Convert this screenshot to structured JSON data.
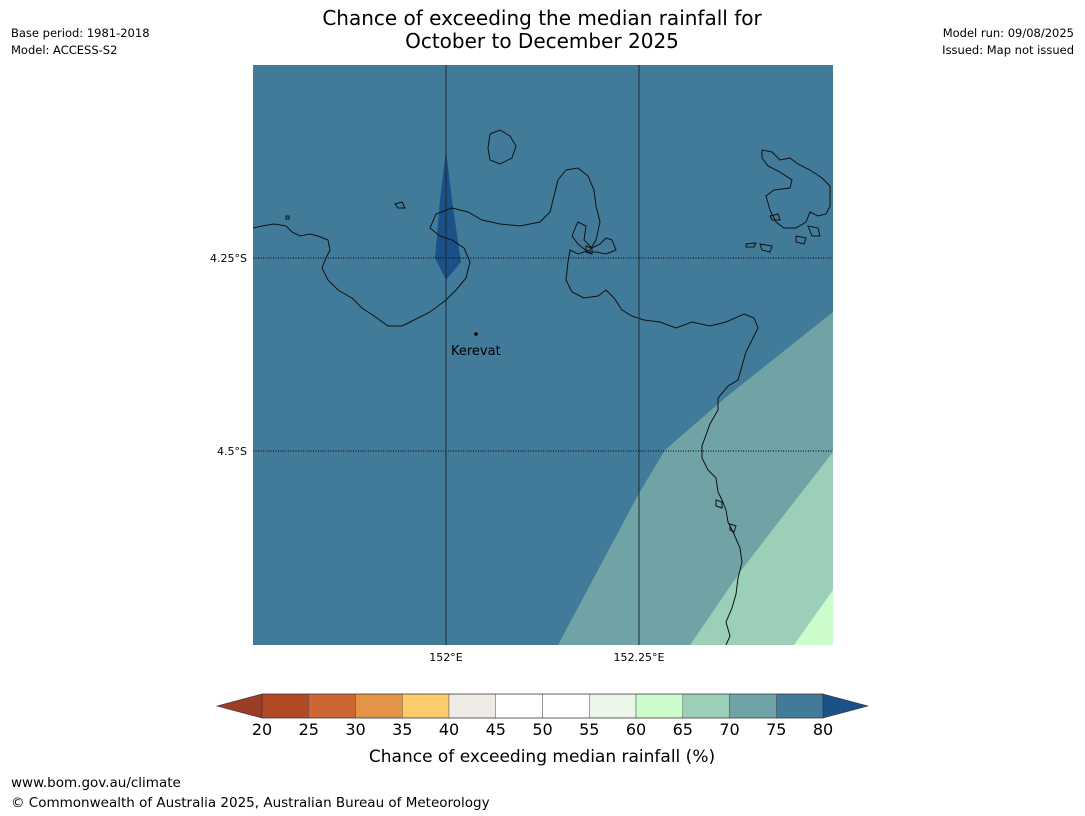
{
  "header": {
    "title_line1": "Chance of exceeding the median rainfall for",
    "title_line2": "October to December 2025",
    "base_period": "Base period: 1981-2018",
    "model": "Model: ACCESS-S2",
    "model_run": "Model run: 09/08/2025",
    "issued": "Issued: Map not issued"
  },
  "map": {
    "lat_labels": [
      "4.25°S",
      "4.5°S"
    ],
    "lon_labels": [
      "152°E",
      "152.25°E"
    ],
    "place": "Kerevat",
    "colors": {
      "ocean_fill": "#427b99",
      "band_70_75": "#6fa3a6",
      "band_65_70": "#9ccfb8",
      "band_60_65": "#ccfccc",
      "high_80": "#1b5187",
      "coastline": "#111111"
    }
  },
  "colorbar": {
    "title": "Chance of exceeding median rainfall (%)",
    "ticks": [
      "20",
      "25",
      "30",
      "35",
      "40",
      "45",
      "50",
      "55",
      "60",
      "65",
      "70",
      "75",
      "80"
    ],
    "colors": [
      "#b14925",
      "#ce6532",
      "#e39446",
      "#fdcc6a",
      "#eeeae6",
      "#ffffff",
      "#ffffff",
      "#eaf6e8",
      "#ccfccc",
      "#9ccfb8",
      "#6fa3a6",
      "#427b99"
    ],
    "low_extend_color": "#9a3d26",
    "high_extend_color": "#1b5187"
  },
  "footer": {
    "url": "www.bom.gov.au/climate",
    "copyright": "© Commonwealth of Australia 2025, Australian Bureau of Meteorology"
  }
}
